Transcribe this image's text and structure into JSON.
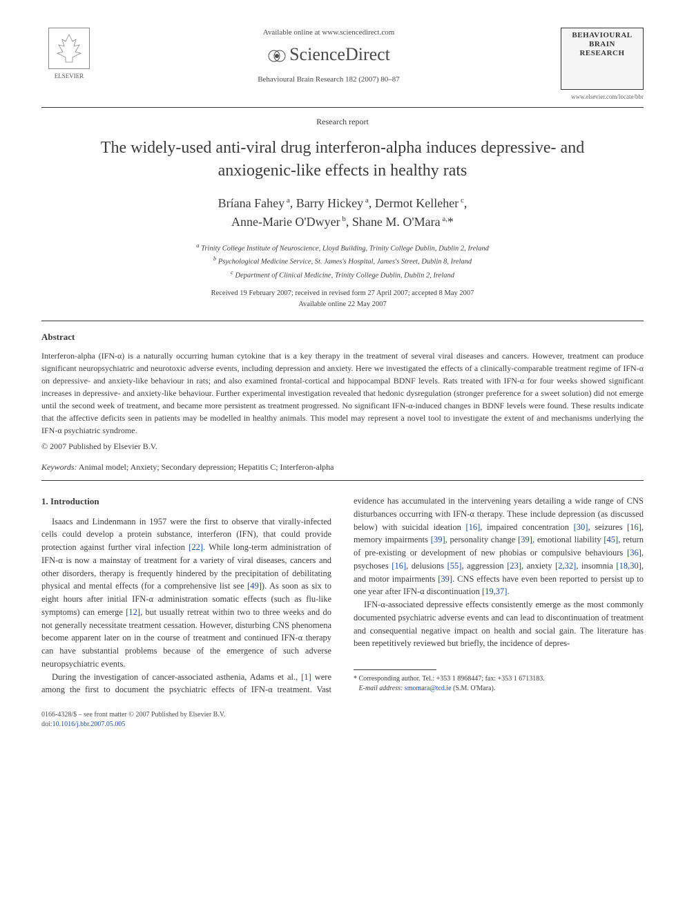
{
  "header": {
    "publisher_name": "ELSEVIER",
    "available_text": "Available online at www.sciencedirect.com",
    "platform_name": "ScienceDirect",
    "citation": "Behavioural Brain Research 182 (2007) 80–87",
    "journal_title_line1": "BEHAVIOURAL",
    "journal_title_line2": "BRAIN",
    "journal_title_line3": "RESEARCH",
    "journal_url": "www.elsevier.com/locate/bbr"
  },
  "article": {
    "type": "Research report",
    "title": "The widely-used anti-viral drug interferon-alpha induces depressive- and anxiogenic-like effects in healthy rats",
    "authors_html": "Bríana Fahey<sup> a</sup>, Barry Hickey<sup> a</sup>, Dermot Kelleher<sup> c</sup>,<br>Anne-Marie O'Dwyer<sup> b</sup>, Shane M. O'Mara<sup> a,</sup>*",
    "affiliations": {
      "a": "Trinity College Institute of Neuroscience, Lloyd Building, Trinity College Dublin, Dublin 2, Ireland",
      "b": "Psychological Medicine Service, St. James's Hospital, James's Street, Dublin 8, Ireland",
      "c": "Department of Clinical Medicine, Trinity College Dublin, Dublin 2, Ireland"
    },
    "dates": {
      "received": "Received 19 February 2007; received in revised form 27 April 2007; accepted 8 May 2007",
      "online": "Available online 22 May 2007"
    }
  },
  "abstract": {
    "heading": "Abstract",
    "text": "Interferon-alpha (IFN-α) is a naturally occurring human cytokine that is a key therapy in the treatment of several viral diseases and cancers. However, treatment can produce significant neuropsychiatric and neurotoxic adverse events, including depression and anxiety. Here we investigated the effects of a clinically-comparable treatment regime of IFN-α on depressive- and anxiety-like behaviour in rats; and also examined frontal-cortical and hippocampal BDNF levels. Rats treated with IFN-α for four weeks showed significant increases in depressive- and anxiety-like behaviour. Further experimental investigation revealed that hedonic dysregulation (stronger preference for a sweet solution) did not emerge until the second week of treatment, and became more persistent as treatment progressed. No significant IFN-α-induced changes in BDNF levels were found. These results indicate that the affective deficits seen in patients may be modelled in healthy animals. This model may represent a novel tool to investigate the extent of and mechanisms underlying the IFN-α psychiatric syndrome.",
    "copyright": "© 2007 Published by Elsevier B.V."
  },
  "keywords": {
    "label": "Keywords:",
    "text": "Animal model; Anxiety; Secondary depression; Hepatitis C; Interferon-alpha"
  },
  "body": {
    "intro_heading": "1. Introduction",
    "p1_pre": "Isaacs and Lindenmann in 1957 were the first to observe that virally-infected cells could develop a protein substance, interferon (IFN), that could provide protection against further viral infection ",
    "r22": "[22]",
    "p1_mid1": ". While long-term administration of IFN-α is now a mainstay of treatment for a variety of viral diseases, cancers and other disorders, therapy is frequently hindered by the precipitation of debilitating physical and mental effects (for a comprehensive list see ",
    "r49": "[49]",
    "p1_mid2": "). As soon as six to eight hours after initial IFN-α administration somatic effects (such as flu-like symptoms) can emerge ",
    "r12": "[12]",
    "p1_post": ", but usually retreat within two to three weeks and do not generally necessitate treatment cessation. However, disturbing CNS phenomena become apparent later on in the course of treatment and continued IFN-α therapy can have substantial problems because of the emergence of such adverse neuropsychiatric events.",
    "p2_pre": "During the investigation of cancer-associated asthenia, Adams et al., ",
    "r1": "[1]",
    "p2_a": " were among the first to document the psychiatric effects of IFN-α treatment. Vast evidence has accumulated in the intervening years detailing a wide range of CNS disturbances occurring with IFN-α therapy. These include depression (as discussed below) with suicidal ideation ",
    "r16a": "[16]",
    "p2_b": ", impaired concentration ",
    "r30a": "[30]",
    "p2_c": ", seizures ",
    "r16b": "[16]",
    "p2_d": ", memory impairments ",
    "r39a": "[39]",
    "p2_e": ", personality change ",
    "r39b": "[39]",
    "p2_f": ", emotional liability ",
    "r45": "[45]",
    "p2_g": ", return of pre-existing or development of new phobias or compulsive behaviours ",
    "r36": "[36]",
    "p2_h": ", psychoses ",
    "r16c": "[16]",
    "p2_i": ", delusions ",
    "r55": "[55]",
    "p2_j": ", aggression ",
    "r23": "[23]",
    "p2_k": ", anxiety ",
    "r2_32": "[2,32]",
    "p2_l": ", insomnia ",
    "r18_30": "[18,30]",
    "p2_m": ", and motor impairments ",
    "r39c": "[39]",
    "p2_n": ". CNS effects have even been reported to persist up to one year after IFN-α discontinuation ",
    "r19_37": "[19,37]",
    "p2_end": ".",
    "p3": "IFN-α-associated depressive effects consistently emerge as the most commonly documented psychiatric adverse events and can lead to discontinuation of treatment and consequential negative impact on health and social gain. The literature has been repetitively reviewed but briefly, the incidence of depres-"
  },
  "footnote": {
    "corr": "* Corresponding author. Tel.: +353 1 8968447; fax: +353 1 6713183.",
    "email_label": "E-mail address:",
    "email": "smomara@tcd.ie",
    "email_who": "(S.M. O'Mara)."
  },
  "footer": {
    "issn": "0166-4328/$ – see front matter © 2007 Published by Elsevier B.V.",
    "doi_label": "doi:",
    "doi": "10.1016/j.bbr.2007.05.005"
  },
  "colors": {
    "link": "#1a4b9b",
    "text": "#3a3a3a",
    "rule": "#333333"
  }
}
